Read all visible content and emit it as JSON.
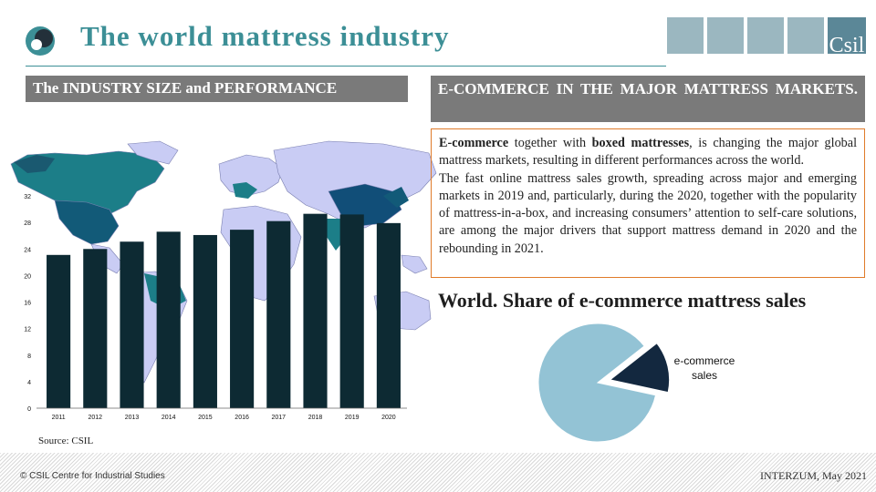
{
  "header": {
    "title": "The world mattress industry",
    "brand": "Csil"
  },
  "left_panel": {
    "heading": "The INDUSTRY SIZE and PERFORMANCE",
    "source": "Source:  CSIL"
  },
  "right_panel": {
    "heading": "E-COMMERCE IN THE MAJOR MATTRESS MARKETS.",
    "paragraph1": {
      "t1": "E-commerce",
      "t2": " together with ",
      "t3": "boxed mattresses",
      "t4": ", is changing the major global mattress markets, resulting in different performances across the world."
    },
    "paragraph2": "The fast online mattress sales growth, spreading across major and emerging markets in 2019 and, particularly, during the 2020, together with the popularity of mattress-in-a-box, and increasing consumers’ attention to self-care solutions, are among the major drivers that support mattress demand in 2020 and the rebounding in 2021.",
    "pie_title": "World. Share of e-commerce mattress sales",
    "pie_label_line1": "e-commerce",
    "pie_label_line2": "sales"
  },
  "footer": {
    "left": "© CSIL Centre for Industrial Studies",
    "right": "INTERZUM,  May 2021"
  },
  "colors": {
    "title_teal": "#3c8f96",
    "bar_dark": "#0d2a33",
    "map_lavender": "#c9ccf4",
    "pie_light": "#93c3d5",
    "pie_dark": "#13283f",
    "text_box_border": "#e07b2a",
    "header_gray": "#7a7a7a"
  },
  "chart_data": [
    {
      "type": "bar",
      "title": "",
      "categories": [
        "2011",
        "2012",
        "2013",
        "2014",
        "2015",
        "2016",
        "2017",
        "2018",
        "2019",
        "2020"
      ],
      "values": [
        23.1,
        24.0,
        25.1,
        26.6,
        26.1,
        26.9,
        28.2,
        29.3,
        29.2,
        27.9
      ],
      "ylim": [
        0,
        32
      ],
      "yticks": [
        "0",
        "4",
        "8",
        "12",
        "16",
        "20",
        "24",
        "28",
        "32"
      ],
      "xlabel": "",
      "ylabel": "",
      "grid": false
    },
    {
      "type": "pie",
      "title": "World. Share of e-commerce mattress sales",
      "slices": [
        {
          "label": "",
          "value": 86
        },
        {
          "label": "e-commerce sales",
          "value": 14
        }
      ]
    }
  ]
}
